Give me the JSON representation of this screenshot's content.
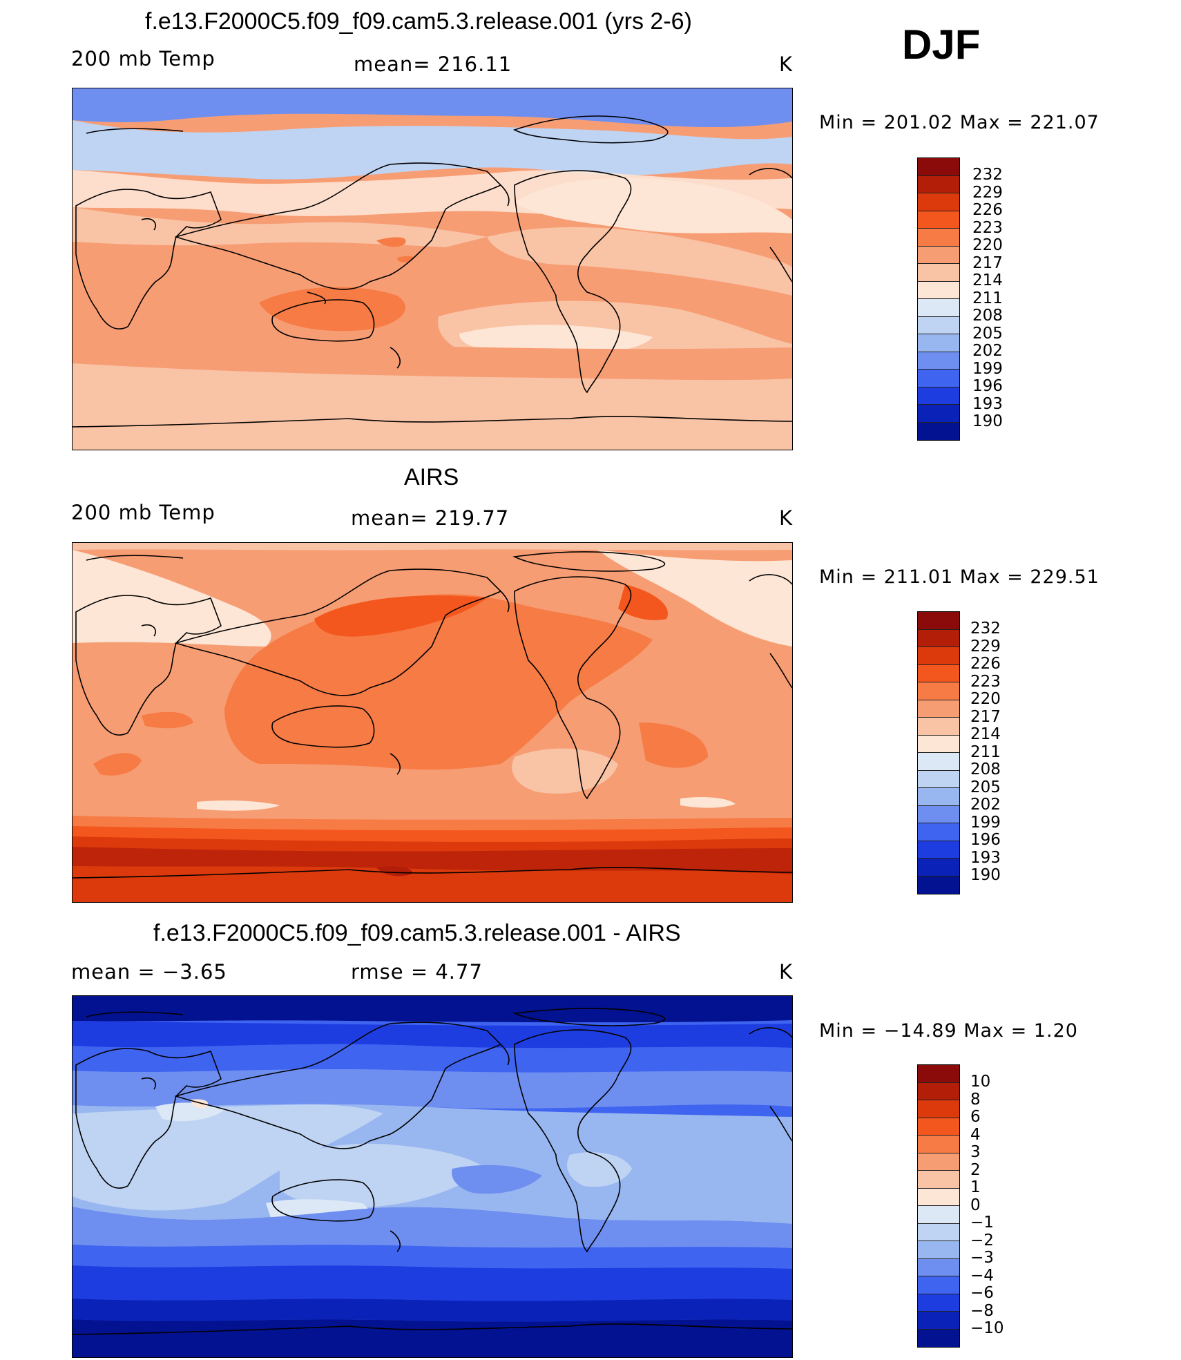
{
  "season": "DJF",
  "panels": [
    {
      "title": "f.e13.F2000C5.f09_f09.cam5.3.release.001 (yrs 2-6)",
      "left_label": "200 mb Temp",
      "center_label": "mean=  216.11",
      "units": "K",
      "minmax": "Min  =  201.02  Max  =  221.07",
      "colorbar_levels": [
        "232",
        "229",
        "226",
        "223",
        "220",
        "217",
        "214",
        "211",
        "208",
        "205",
        "202",
        "199",
        "196",
        "193",
        "190"
      ]
    },
    {
      "title": "AIRS",
      "left_label": "200 mb Temp",
      "center_label": "mean=  219.77",
      "units": "K",
      "minmax": "Min  =  211.01  Max  =  229.51",
      "colorbar_levels": [
        "232",
        "229",
        "226",
        "223",
        "220",
        "217",
        "214",
        "211",
        "208",
        "205",
        "202",
        "199",
        "196",
        "193",
        "190"
      ]
    },
    {
      "title": "f.e13.F2000C5.f09_f09.cam5.3.release.001 - AIRS",
      "left_label": "mean  =     −3.65",
      "center_label": "rmse  =     4.77",
      "units": "K",
      "minmax": "Min  =  −14.89  Max  =       1.20",
      "colorbar_levels": [
        "10",
        "8",
        "6",
        "4",
        "3",
        "2",
        "1",
        "0",
        "−1",
        "−2",
        "−3",
        "−4",
        "−6",
        "−8",
        "−10"
      ]
    }
  ],
  "colorbar_colors": [
    "#8b0a0a",
    "#b31e08",
    "#dc3a0c",
    "#f4571d",
    "#f67b45",
    "#f79d74",
    "#f9c3a6",
    "#fde6d6",
    "#dde8f7",
    "#bfd3f3",
    "#98b6ef",
    "#6f8ff0",
    "#3f64f0",
    "#1e3de1",
    "#0a22b8",
    "#021290"
  ],
  "chart_data": [
    {
      "type": "heatmap",
      "title": "f.e13.F2000C5.f09_f09.cam5.3.release.001 (yrs 2-6)",
      "variable": "200 mb Temp",
      "units": "K",
      "mean": 216.11,
      "min": 201.02,
      "max": 221.07,
      "levels": [
        190,
        193,
        196,
        199,
        202,
        205,
        208,
        211,
        214,
        217,
        220,
        223,
        226,
        229,
        232
      ],
      "season": "DJF"
    },
    {
      "type": "heatmap",
      "title": "AIRS",
      "variable": "200 mb Temp",
      "units": "K",
      "mean": 219.77,
      "min": 211.01,
      "max": 229.51,
      "levels": [
        190,
        193,
        196,
        199,
        202,
        205,
        208,
        211,
        214,
        217,
        220,
        223,
        226,
        229,
        232
      ],
      "season": "DJF"
    },
    {
      "type": "heatmap",
      "title": "f.e13.F2000C5.f09_f09.cam5.3.release.001 - AIRS",
      "units": "K",
      "mean": -3.65,
      "rmse": 4.77,
      "min": -14.89,
      "max": 1.2,
      "levels": [
        -10,
        -8,
        -6,
        -4,
        -3,
        -2,
        -1,
        0,
        1,
        2,
        3,
        4,
        6,
        8,
        10
      ],
      "season": "DJF"
    }
  ]
}
